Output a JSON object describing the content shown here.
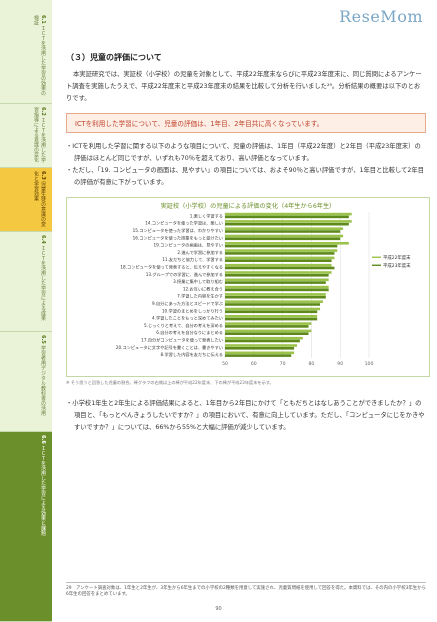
{
  "site_logo": "ReseMom",
  "sidebar": {
    "tabs": [
      {
        "num": "6.1",
        "label": "ＩＣＴを活用した学習の効果の検証"
      },
      {
        "num": "6.2",
        "label": "ＩＣＴを活用した学習指導による意識の変化"
      },
      {
        "num": "6.3",
        "label": "児童生徒の意識の変化と学習効果"
      },
      {
        "num": "6.4",
        "label": "ＩＣＴを活用した学習による成果"
      },
      {
        "num": "6.5",
        "label": "学習者用デジタル教科書の活用"
      },
      {
        "num": "6.6",
        "label": "ＩＣＴを活用した学習による効果と課題"
      }
    ]
  },
  "content": {
    "section_title": "（３）児童の評価について",
    "intro": "本実証研究では、実証校（小学校）の児童を対象として、平成22年度末ならびに平成23年度末に、同じ質問によるアンケート調査を実施したうえで、平成22年度末と平成23年度末の結果を比較して分析を行いました²⁹。分析結果の概要は以下のとおりです。",
    "callout": "ICTを利用した学習について、児童の評価は、1年目、2年目共に高くなっています。",
    "bullets": [
      "・ICTを利用した学習に関する以下のような項目について、児童の評価は、1年目（平成22年度）と2年目（平成23年度末）の評価はほとんど同じですが、いずれも70％を超えており、高い評価となっています。",
      "・ただし、「19. コンピュータの画面は、見やすい」の項目については、およそ90％と高い評価ですが、1年目と比較して2年目の評価が有意に下がっています。"
    ],
    "chart_note": "※ そう思うと回答した児童の割合。棒グラフの右側は上の棒が平成22年度末、下の棒が平成23年度末を示す。",
    "bullet_after": "・小学校1年生と2年生による評価結果によると、1年目から2年目にかけて「ともだちとはなしあうことができましたか？」の項目と、「もっとべんきょうしたいですか？」の項目において、有意に向上しています。ただし、「コンピュータにじをかきやすいですか？」については、66%から55%と大幅に評価が減少しています。",
    "footnote": "29　アンケート調査対象は、1年生と2年生が、3年生から6年生までの小学校の2種類を用意して実施され、児童質問紙を使用して回答を得た。本資料では、その内の小学校3年生から6年生の回答をまとめています。",
    "page_number": "90"
  },
  "chart_data": {
    "type": "bar",
    "title": "実証校（小学校）の児童による評価の変化（4年生から6年生）",
    "orientation": "horizontal",
    "categories": [
      "1.楽しく学習する",
      "14.コンピュータを使った学習は、楽しい",
      "15.コンピュータを使った学習は、わかりやすい",
      "16.コンピュータを使った授業をもっと受けたい",
      "19.コンピュータの画面は、見やすい",
      "2.進んで学習に参加する",
      "11.友だちと協力して、学習する",
      "18.コンピュータを使って発表すると、伝えやすくなる",
      "13.グループでの学習に、進んで参加する",
      "3.授業に集中して取り組む",
      "12.お互いに教え合う",
      "7.学習した内容を生かす",
      "9.自分にあった方法とスピードで学ぶ",
      "10.学習のまとめをしっかり行う",
      "4.学習したことをもっと深めてみたい",
      "5.じっくりと考えて、自分の考えを深める",
      "6.自分の考えを自分なりにまとめる",
      "17.自分がコンピュータを使って発表したい",
      "20.コンピュータに文字や記号を書くことは、書きやすい",
      "8.学習した内容を友だちに伝える"
    ],
    "series": [
      {
        "name": "平成22年度末",
        "values": [
          94,
          94,
          91,
          91,
          93,
          89,
          88,
          87,
          87,
          86,
          86,
          85,
          84,
          83,
          82,
          80,
          80,
          77,
          75,
          74
        ]
      },
      {
        "name": "平成23年度末",
        "values": [
          93,
          93,
          90,
          90,
          89,
          88,
          87,
          88,
          86,
          85,
          86,
          85,
          83,
          82,
          82,
          79,
          79,
          76,
          74,
          73
        ]
      }
    ],
    "xlim": [
      50,
      100
    ],
    "xticks": [
      "50",
      "60",
      "70",
      "80",
      "90",
      "100"
    ],
    "colors": {
      "series1": "#9bc24b",
      "series2": "#5e8a1d",
      "label_bg": "#ffffff"
    },
    "legend_placement": "right",
    "grid": true
  }
}
